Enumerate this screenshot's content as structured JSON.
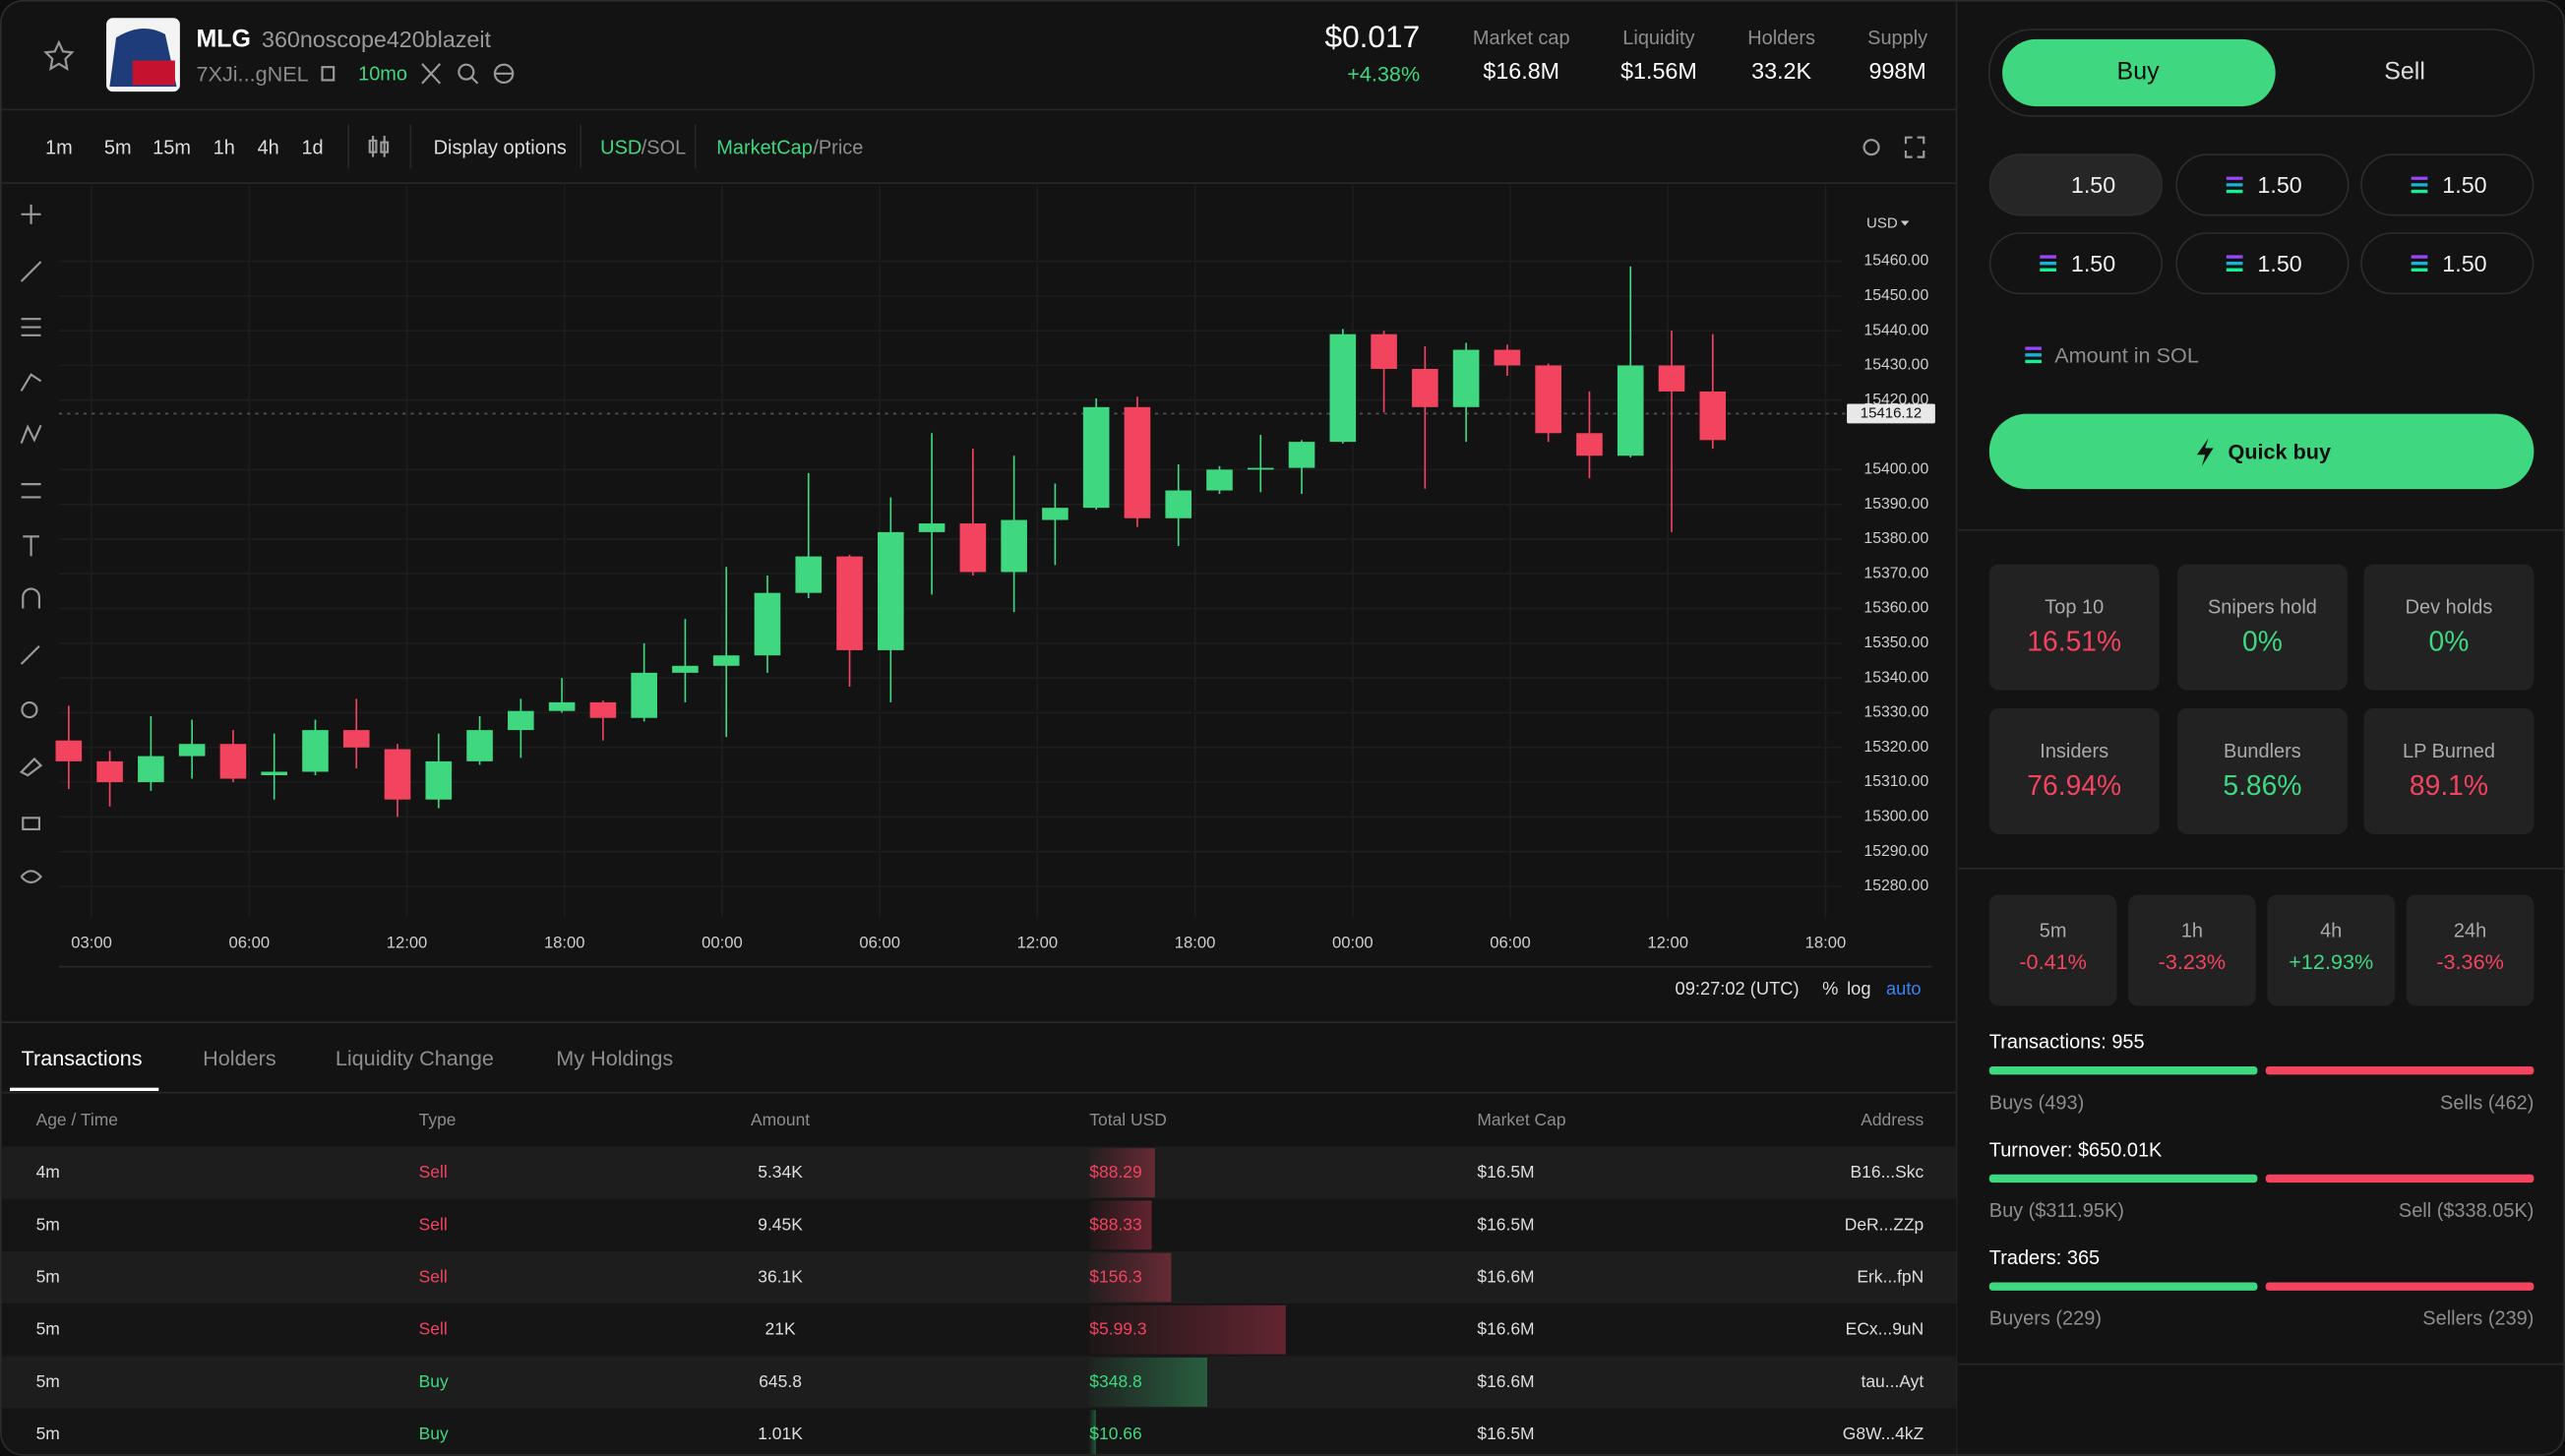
{
  "header": {
    "symbol": "MLG",
    "name": "360noscope420blazeit",
    "address": "7XJi...gNEL",
    "age": "10mo",
    "price": "$0.017",
    "change": "+4.38%",
    "stats": [
      {
        "label": "Market cap",
        "value": "$16.8M"
      },
      {
        "label": "Liquidity",
        "value": "$1.56M"
      },
      {
        "label": "Holders",
        "value": "33.2K"
      },
      {
        "label": "Supply",
        "value": "998M"
      }
    ]
  },
  "toolbar": {
    "intervals": [
      "1m",
      "5m",
      "15m",
      "1h",
      "4h",
      "1d"
    ],
    "display_options": "Display options",
    "currency": "USD",
    "currency_alt": "/SOL",
    "mode": "MarketCap",
    "mode_alt": "/Price"
  },
  "chart_data": {
    "type": "candlestick",
    "currency": "USD",
    "up_color": "#3fd77f",
    "down_color": "#f2435f",
    "open": [
      15322,
      15316,
      15310,
      15317.5,
      15321,
      15312,
      15313,
      15325,
      15319.5,
      15305,
      15316,
      15325,
      15330.5,
      15333,
      15328.5,
      15341.5,
      15343.5,
      15346.5,
      15364.5,
      15375,
      15348,
      15382,
      15384.5,
      15370.5,
      15385.5,
      15389,
      15418,
      15386,
      15394,
      15400,
      15400.5,
      15408,
      15439,
      15429,
      15418,
      15434.5,
      15430,
      15410.5,
      15404,
      15430,
      15422.5
    ],
    "high": [
      15332,
      15319,
      15329,
      15328,
      15325,
      15324,
      15328,
      15334,
      15321,
      15324,
      15329,
      15334,
      15340,
      15333.5,
      15350,
      15357,
      15372,
      15369.5,
      15399,
      15375.5,
      15392,
      15410.5,
      15406,
      15404,
      15396,
      15420.5,
      15421,
      15401.5,
      15401,
      15410,
      15408.5,
      15440.5,
      15440,
      15435.5,
      15436.5,
      15436,
      15430.5,
      15422.5,
      15458.5,
      15440,
      15439
    ],
    "low": [
      15308,
      15303,
      15307.5,
      15311,
      15310,
      15305,
      15312,
      15314,
      15300,
      15302.5,
      15315,
      15317,
      15330,
      15322,
      15327.5,
      15333,
      15323,
      15341.5,
      15363,
      15337.5,
      15333,
      15364,
      15369.5,
      15359,
      15372.5,
      15388.5,
      15383.5,
      15378,
      15393,
      15393.5,
      15393,
      15407.5,
      15416.5,
      15394.5,
      15408,
      15427,
      15408,
      15397.5,
      15403.5,
      15382,
      15406
    ],
    "close": [
      15316,
      15310,
      15317.5,
      15321,
      15311,
      15313,
      15325,
      15320,
      15305,
      15316,
      15325,
      15330.5,
      15333,
      15328.5,
      15341.5,
      15343.5,
      15346.5,
      15364.5,
      15375,
      15348,
      15382,
      15384.5,
      15370.5,
      15385.5,
      15389,
      15418,
      15386,
      15394,
      15400,
      15400.5,
      15408,
      15439,
      15429,
      15418,
      15434.5,
      15430,
      15410.5,
      15404,
      15430,
      15422.5,
      15408.5
    ],
    "ylim": [
      15271,
      15482
    ],
    "yticks": [
      {
        "value": 15460,
        "label": "15460.00"
      },
      {
        "value": 15450,
        "label": "15450.00"
      },
      {
        "value": 15440,
        "label": "15440.00"
      },
      {
        "value": 15430,
        "label": "15430.00"
      },
      {
        "value": 15420,
        "label": "15420.00"
      },
      {
        "value": 15400,
        "label": "15400.00"
      },
      {
        "value": 15390,
        "label": "15390.00"
      },
      {
        "value": 15380,
        "label": "15380.00"
      },
      {
        "value": 15370,
        "label": "15370.00"
      },
      {
        "value": 15360,
        "label": "15360.00"
      },
      {
        "value": 15350,
        "label": "15350.00"
      },
      {
        "value": 15340,
        "label": "15340.00"
      },
      {
        "value": 15330,
        "label": "15330.00"
      },
      {
        "value": 15320,
        "label": "15320.00"
      },
      {
        "value": 15310,
        "label": "15310.00"
      },
      {
        "value": 15300,
        "label": "15300.00"
      },
      {
        "value": 15290,
        "label": "15290.00"
      },
      {
        "value": 15280,
        "label": "15280.00"
      }
    ],
    "last_price": 15416.12,
    "xticks": [
      "03:00",
      "06:00",
      "12:00",
      "18:00",
      "00:00",
      "06:00",
      "12:00",
      "18:00",
      "00:00",
      "06:00",
      "12:00",
      "18:00"
    ],
    "grid": true,
    "time": "09:27:02 (UTC)",
    "scale_options": [
      "%",
      "log",
      "auto"
    ]
  },
  "tabs": [
    "Transactions",
    "Holders",
    "Liquidity Change",
    "My Holdings"
  ],
  "table": {
    "columns": [
      "Age / Time",
      "Type",
      "Amount",
      "Total USD",
      "Market Cap",
      "Address"
    ],
    "rows": [
      [
        "4m",
        "Sell",
        "5.34K",
        "$88.29",
        "$16.5M",
        "B16...Skc"
      ],
      [
        "5m",
        "Sell",
        "9.45K",
        "$88.33",
        "$16.5M",
        "DeR...ZZp"
      ],
      [
        "5m",
        "Sell",
        "36.1K",
        "$156.3",
        "$16.6M",
        "Erk...fpN"
      ],
      [
        "5m",
        "Sell",
        "21K",
        "$5.99.3",
        "$16.6M",
        "ECx...9uN"
      ],
      [
        "5m",
        "Buy",
        "645.8",
        "$348.8",
        "$16.6M",
        "tau...Ayt"
      ],
      [
        "5m",
        "Buy",
        "1.01K",
        "$10.66",
        "$16.5M",
        "G8W...4kZ"
      ]
    ]
  },
  "trade": {
    "buy": "Buy",
    "sell": "Sell",
    "amounts": [
      "1.50",
      "1.50",
      "1.50",
      "1.50",
      "1.50",
      "1.50"
    ],
    "amount_label": "Amount in SOL",
    "quick_buy": "Quick buy",
    "holdings": [
      {
        "label": "Top 10",
        "value": "16.51%",
        "color": "#f2435f"
      },
      {
        "label": "Snipers hold",
        "value": "0%",
        "color": "#3fd77f"
      },
      {
        "label": "Dev holds",
        "value": "0%",
        "color": "#3fd77f"
      },
      {
        "label": "Insiders",
        "value": "76.94%",
        "color": "#f2435f"
      },
      {
        "label": "Bundlers",
        "value": "5.86%",
        "color": "#3fd77f"
      },
      {
        "label": "LP Burned",
        "value": "89.1%",
        "color": "#f2435f"
      }
    ],
    "changes": [
      {
        "label": "5m",
        "value": "-0.41%",
        "color": "#f2435f"
      },
      {
        "label": "1h",
        "value": "-3.23%",
        "color": "#f2435f"
      },
      {
        "label": "4h",
        "value": "+12.93%",
        "color": "#3fd77f"
      },
      {
        "label": "24h",
        "value": "-3.36%",
        "color": "#f2435f"
      }
    ],
    "flows": [
      {
        "title": "Transactions: 955",
        "left": "Buys (493)",
        "right": "Sells (462)"
      },
      {
        "title": "Turnover: $650.01K",
        "left": "Buy ($311.95K)",
        "right": "Sell ($338.05K)"
      },
      {
        "title": "Traders: 365",
        "left": "Buyers (229)",
        "right": "Sellers (239)"
      }
    ]
  }
}
